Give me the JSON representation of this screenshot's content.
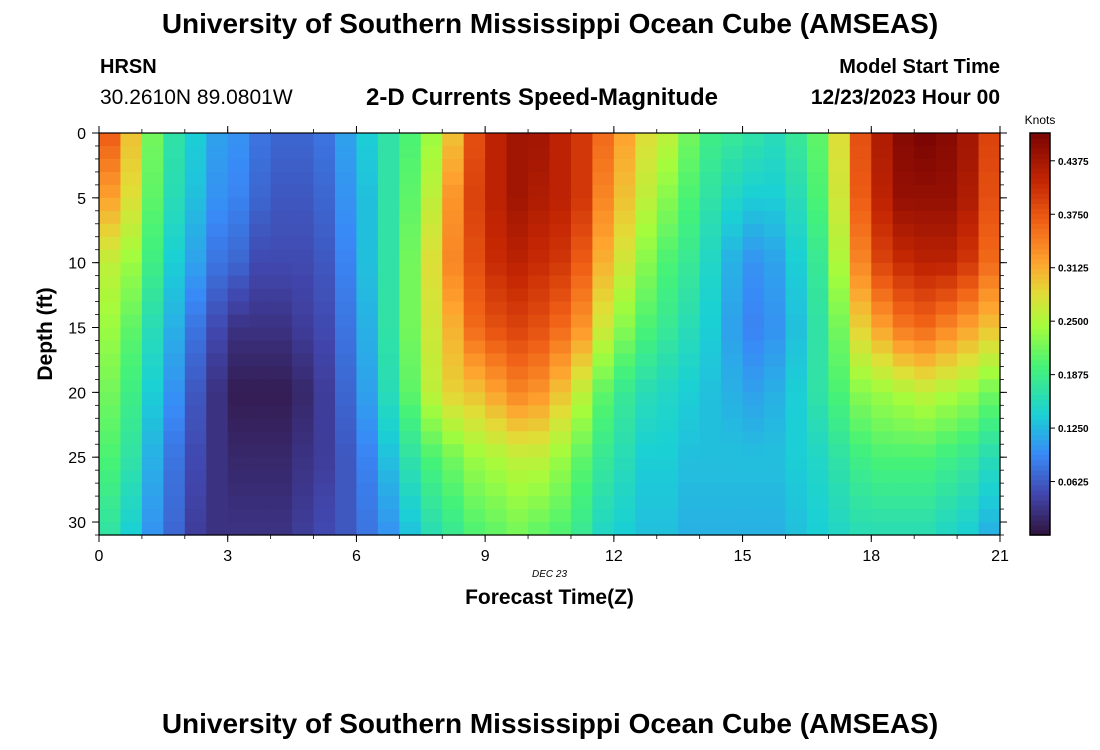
{
  "header": {
    "title": "University of Southern Mississippi Ocean Cube (AMSEAS)",
    "station": "HRSN",
    "coordinates": "30.2610N  89.0801W",
    "subtitle": "2-D Currents Speed-Magnitude",
    "model_start_label": "Model Start Time",
    "model_start_value": "12/23/2023 Hour 00"
  },
  "footer": {
    "title": "University of Southern Mississippi Ocean Cube (AMSEAS)"
  },
  "chart_data": {
    "type": "heatmap",
    "title": "2-D Currents Speed-Magnitude",
    "xlabel": "Forecast Time(Z)",
    "ylabel": "Depth (ft)",
    "date_label": "DEC 23",
    "x_ticks": [
      "0",
      "3",
      "6",
      "9",
      "12",
      "15",
      "18",
      "21"
    ],
    "y_ticks": [
      "0",
      "5",
      "10",
      "15",
      "20",
      "25",
      "30"
    ],
    "xlim": [
      0,
      21
    ],
    "ylim": [
      0,
      31
    ],
    "y_inverted": true,
    "colorbar": {
      "label": "Knots",
      "min": 0.0,
      "max": 0.47,
      "tick_values": [
        0.0625,
        0.125,
        0.1875,
        0.25,
        0.3125,
        0.375,
        0.4375
      ],
      "tick_labels": [
        "0.0625",
        "0.1250",
        "0.1875",
        "0.2500",
        "0.3125",
        "0.3750",
        "0.4375"
      ]
    },
    "grid": {
      "hours_start": 0,
      "hours_step": 0.5,
      "hours_count": 42,
      "depth_start": 0.5,
      "depth_step": 1,
      "depth_count": 31,
      "value_rows": [
        {
          "depth": 0,
          "values": [
            0.37,
            0.3,
            0.22,
            0.17,
            0.14,
            0.11,
            0.1,
            0.08,
            0.07,
            0.07,
            0.08,
            0.11,
            0.14,
            0.17,
            0.2,
            0.24,
            0.3,
            0.38,
            0.42,
            0.44,
            0.44,
            0.42,
            0.4,
            0.36,
            0.32,
            0.28,
            0.26,
            0.22,
            0.19,
            0.18,
            0.17,
            0.16,
            0.18,
            0.21,
            0.28,
            0.38,
            0.43,
            0.46,
            0.47,
            0.46,
            0.44,
            0.39
          ]
        },
        {
          "depth": 5,
          "values": [
            0.32,
            0.28,
            0.21,
            0.16,
            0.13,
            0.1,
            0.09,
            0.07,
            0.06,
            0.06,
            0.07,
            0.1,
            0.13,
            0.17,
            0.21,
            0.26,
            0.33,
            0.39,
            0.42,
            0.44,
            0.43,
            0.42,
            0.4,
            0.34,
            0.3,
            0.26,
            0.23,
            0.2,
            0.17,
            0.15,
            0.14,
            0.14,
            0.16,
            0.2,
            0.27,
            0.37,
            0.42,
            0.45,
            0.45,
            0.45,
            0.43,
            0.38
          ]
        },
        {
          "depth": 10,
          "values": [
            0.26,
            0.24,
            0.19,
            0.14,
            0.11,
            0.08,
            0.07,
            0.05,
            0.05,
            0.05,
            0.06,
            0.09,
            0.13,
            0.17,
            0.22,
            0.28,
            0.34,
            0.38,
            0.41,
            0.42,
            0.41,
            0.4,
            0.37,
            0.31,
            0.27,
            0.23,
            0.2,
            0.18,
            0.15,
            0.12,
            0.1,
            0.11,
            0.14,
            0.18,
            0.25,
            0.34,
            0.39,
            0.41,
            0.42,
            0.42,
            0.4,
            0.36
          ]
        },
        {
          "depth": 15,
          "values": [
            0.24,
            0.21,
            0.16,
            0.12,
            0.08,
            0.05,
            0.03,
            0.03,
            0.03,
            0.04,
            0.05,
            0.08,
            0.12,
            0.17,
            0.22,
            0.27,
            0.31,
            0.36,
            0.38,
            0.39,
            0.38,
            0.36,
            0.33,
            0.27,
            0.23,
            0.2,
            0.18,
            0.16,
            0.14,
            0.11,
            0.09,
            0.1,
            0.13,
            0.17,
            0.22,
            0.29,
            0.32,
            0.35,
            0.36,
            0.34,
            0.32,
            0.3
          ]
        },
        {
          "depth": 20,
          "values": [
            0.22,
            0.19,
            0.14,
            0.1,
            0.06,
            0.03,
            0.01,
            0.01,
            0.01,
            0.02,
            0.04,
            0.07,
            0.11,
            0.16,
            0.21,
            0.26,
            0.29,
            0.3,
            0.32,
            0.34,
            0.33,
            0.3,
            0.26,
            0.21,
            0.18,
            0.16,
            0.15,
            0.14,
            0.13,
            0.12,
            0.11,
            0.12,
            0.14,
            0.17,
            0.2,
            0.23,
            0.24,
            0.25,
            0.26,
            0.25,
            0.24,
            0.22
          ]
        },
        {
          "depth": 25,
          "values": [
            0.2,
            0.17,
            0.12,
            0.08,
            0.05,
            0.03,
            0.02,
            0.02,
            0.02,
            0.03,
            0.04,
            0.06,
            0.09,
            0.13,
            0.17,
            0.2,
            0.22,
            0.24,
            0.25,
            0.26,
            0.26,
            0.24,
            0.21,
            0.18,
            0.16,
            0.14,
            0.14,
            0.13,
            0.13,
            0.13,
            0.13,
            0.13,
            0.14,
            0.15,
            0.17,
            0.19,
            0.2,
            0.2,
            0.2,
            0.19,
            0.18,
            0.16
          ]
        },
        {
          "depth": 31,
          "values": [
            0.17,
            0.14,
            0.1,
            0.07,
            0.04,
            0.03,
            0.03,
            0.03,
            0.03,
            0.04,
            0.05,
            0.06,
            0.08,
            0.1,
            0.13,
            0.16,
            0.18,
            0.2,
            0.21,
            0.22,
            0.21,
            0.2,
            0.18,
            0.15,
            0.14,
            0.13,
            0.13,
            0.12,
            0.12,
            0.12,
            0.12,
            0.12,
            0.13,
            0.14,
            0.15,
            0.16,
            0.16,
            0.16,
            0.16,
            0.15,
            0.14,
            0.12
          ]
        }
      ]
    }
  }
}
